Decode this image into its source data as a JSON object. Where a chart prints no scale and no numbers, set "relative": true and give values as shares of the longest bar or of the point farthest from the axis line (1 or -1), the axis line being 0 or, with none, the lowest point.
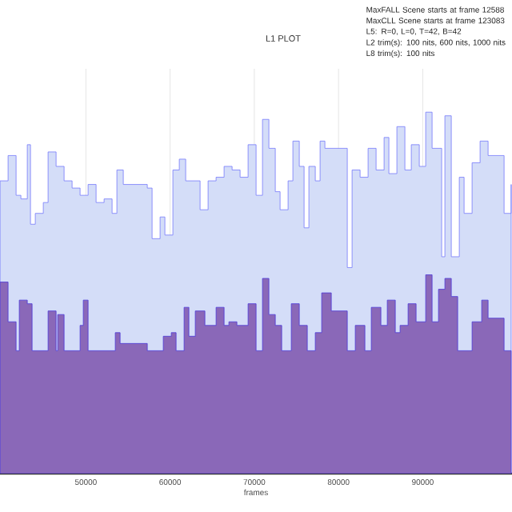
{
  "chart_data": {
    "type": "area",
    "title": "L1 PLOT",
    "xlabel": "frames",
    "relative": true,
    "grid": "x",
    "annotations": [
      "MaxFALL Scene starts at frame 12588",
      "MaxCLL Scene starts at frame 123083",
      "L5: R=0, L=0, T=42, B=42",
      "L2 trim(s): 100 nits, 600 nits, 1000 nits",
      "L8 trim(s): 100 nits"
    ],
    "xlim": [
      39800,
      100600
    ],
    "xticks": [
      50000,
      60000,
      70000,
      80000,
      90000
    ],
    "series": [
      {
        "color": "#d4ddf8",
        "x": [
          39810,
          40760,
          41710,
          42280,
          43040,
          43420,
          43990,
          44940,
          45510,
          46460,
          47410,
          48360,
          49310,
          50260,
          51210,
          52160,
          53110,
          53680,
          54440,
          55960,
          57290,
          57860,
          58810,
          59380,
          60330,
          61090,
          61850,
          62610,
          63560,
          64510,
          65460,
          66410,
          67360,
          68310,
          69260,
          70210,
          70970,
          71730,
          72490,
          73060,
          74010,
          74580,
          75340,
          75910,
          76480,
          77240,
          77810,
          78380,
          79140,
          80280,
          81040,
          81610,
          82560,
          83510,
          84460,
          85410,
          85980,
          86930,
          87880,
          88640,
          89590,
          90350,
          91110,
          92250,
          92630,
          93390,
          94340,
          94910,
          95860,
          96810,
          97760,
          98710,
          99660,
          100500
        ],
        "values": [
          0.81,
          0.88,
          0.77,
          0.76,
          0.91,
          0.69,
          0.72,
          0.75,
          0.89,
          0.85,
          0.81,
          0.79,
          0.77,
          0.8,
          0.75,
          0.76,
          0.72,
          0.84,
          0.8,
          0.8,
          0.79,
          0.65,
          0.71,
          0.66,
          0.84,
          0.87,
          0.81,
          0.81,
          0.73,
          0.81,
          0.82,
          0.85,
          0.84,
          0.82,
          0.91,
          0.77,
          0.98,
          0.9,
          0.78,
          0.73,
          0.81,
          0.92,
          0.85,
          0.68,
          0.85,
          0.81,
          0.92,
          0.9,
          0.9,
          0.9,
          0.57,
          0.84,
          0.82,
          0.9,
          0.84,
          0.93,
          0.83,
          0.96,
          0.84,
          0.91,
          0.85,
          1.0,
          0.9,
          0.6,
          0.99,
          0.6,
          0.82,
          0.72,
          0.86,
          0.92,
          0.88,
          0.88,
          0.72,
          0.8
        ]
      },
      {
        "color": "#8a68b8",
        "x": [
          39810,
          40760,
          41710,
          42090,
          43040,
          43610,
          45510,
          46460,
          46650,
          47410,
          49310,
          49690,
          50260,
          53490,
          54060,
          57290,
          59190,
          60140,
          60710,
          61660,
          62230,
          62990,
          64130,
          65460,
          66410,
          66980,
          67930,
          69260,
          70210,
          70970,
          71730,
          72490,
          73250,
          74390,
          75340,
          76290,
          77240,
          78000,
          79140,
          80280,
          81040,
          81990,
          83130,
          83890,
          85030,
          85790,
          86740,
          87310,
          88260,
          89210,
          90350,
          91110,
          91870,
          92630,
          93390,
          94150,
          95290,
          95860,
          97000,
          97760,
          98710,
          99660,
          100500
        ],
        "values": [
          0.53,
          0.42,
          0.34,
          0.48,
          0.47,
          0.34,
          0.45,
          0.34,
          0.44,
          0.34,
          0.41,
          0.48,
          0.34,
          0.39,
          0.36,
          0.34,
          0.38,
          0.39,
          0.34,
          0.46,
          0.38,
          0.45,
          0.41,
          0.46,
          0.41,
          0.42,
          0.41,
          0.47,
          0.34,
          0.54,
          0.44,
          0.41,
          0.34,
          0.47,
          0.41,
          0.34,
          0.39,
          0.5,
          0.45,
          0.45,
          0.34,
          0.41,
          0.34,
          0.46,
          0.41,
          0.48,
          0.39,
          0.41,
          0.47,
          0.42,
          0.55,
          0.42,
          0.51,
          0.54,
          0.49,
          0.34,
          0.34,
          0.42,
          0.48,
          0.43,
          0.43,
          0.34,
          0.34
        ]
      }
    ]
  }
}
